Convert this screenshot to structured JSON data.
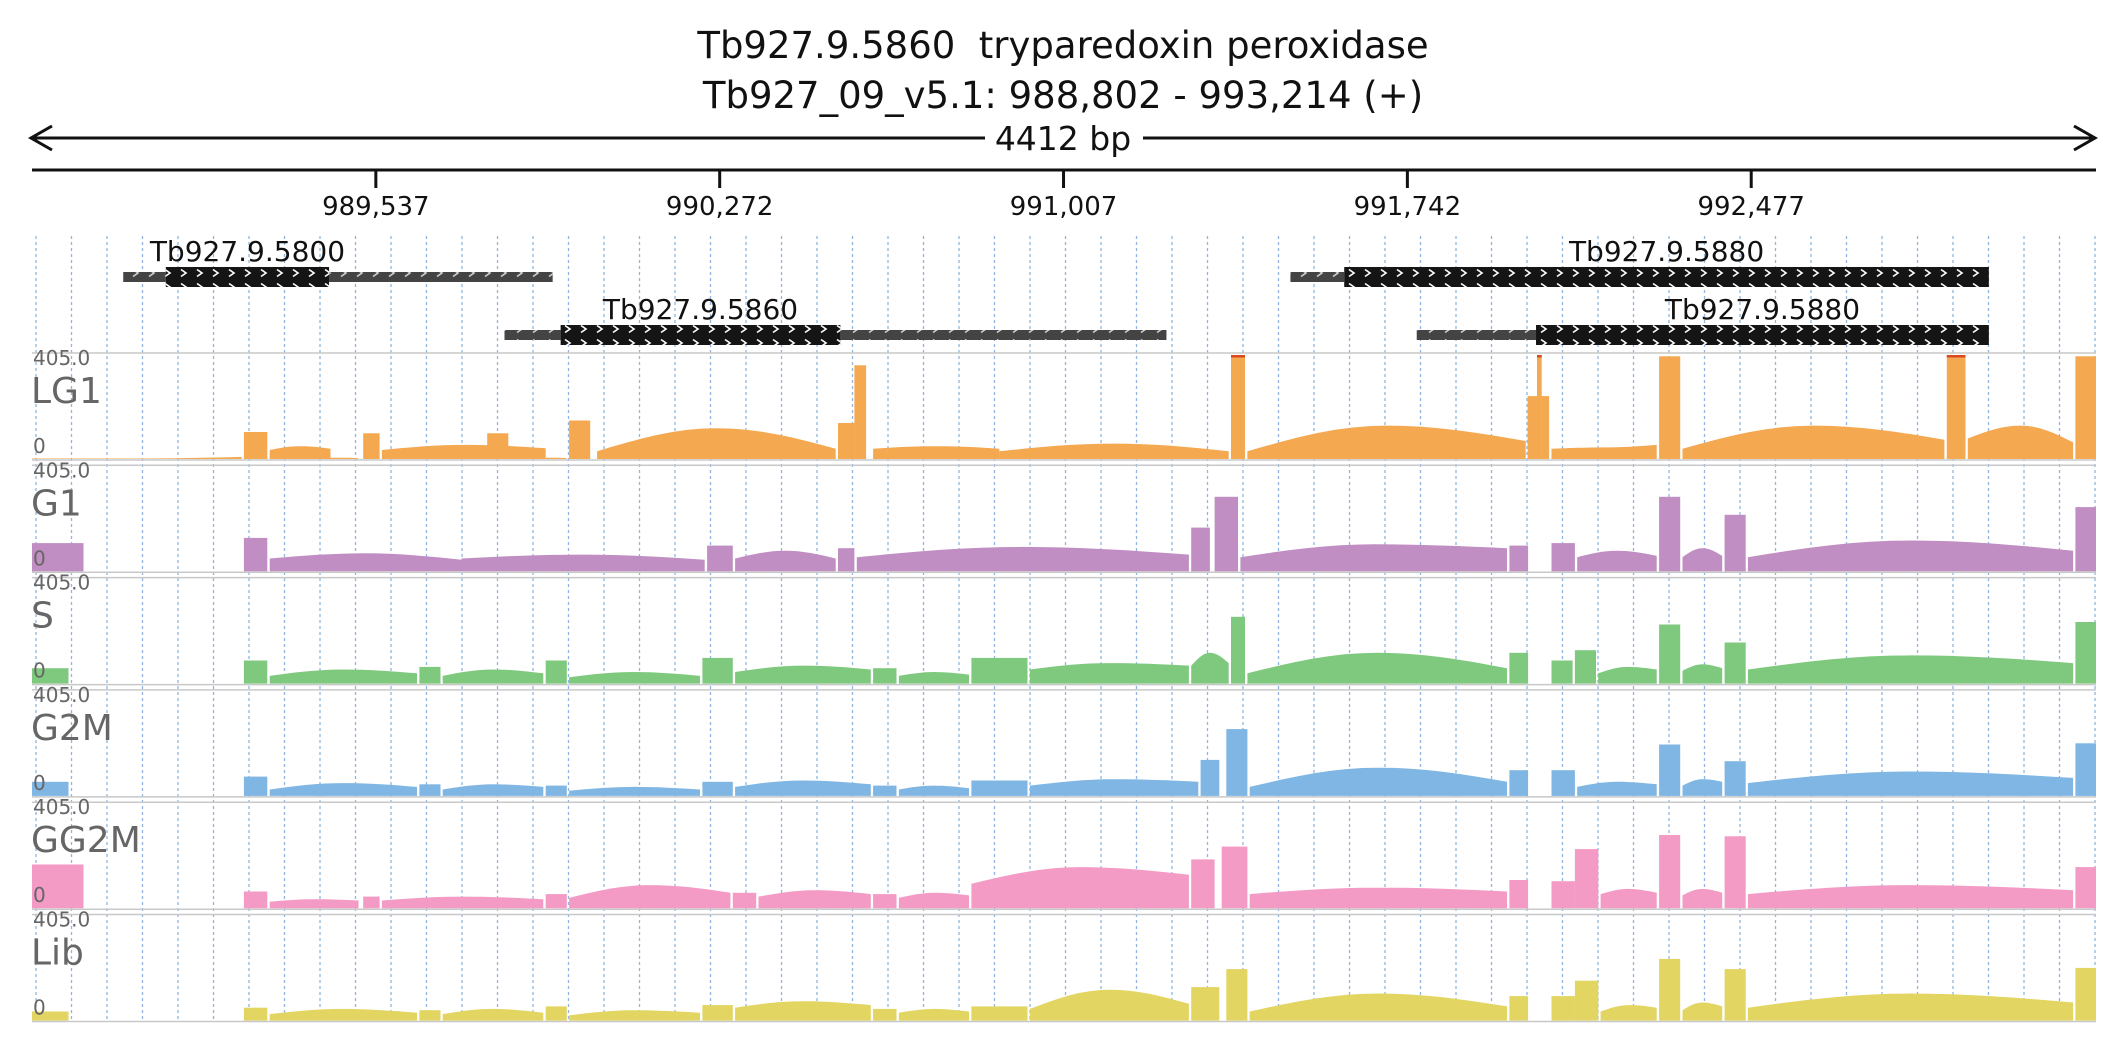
{
  "header": {
    "title": "Tb927.9.5860  tryparedoxin peroxidase",
    "region": "Tb927_09_v5.1: 988,802 - 993,214 (+)",
    "span_label": "4412 bp"
  },
  "chart_data": {
    "type": "area",
    "x_range": [
      988802,
      993214
    ],
    "ticks": [
      989537,
      990272,
      991007,
      991742,
      992477
    ],
    "tick_labels": [
      "989,537",
      "990,272",
      "991,007",
      "991,742",
      "992,477"
    ],
    "genes": [
      {
        "label": "Tb927.9.5800",
        "utr5": [
          988997,
          989088
        ],
        "cds": [
          989088,
          989437
        ],
        "utr3": [
          989437,
          989915
        ],
        "row": 0
      },
      {
        "label": "Tb927.9.5860",
        "utr5": [
          989812,
          989932
        ],
        "cds": [
          989932,
          990530
        ],
        "utr3": [
          990530,
          991227
        ],
        "row": 1
      },
      {
        "label": "Tb927.9.5880",
        "utr5": [
          991492,
          991607
        ],
        "cds": [
          991607,
          992985
        ],
        "utr3": null,
        "row": 0
      },
      {
        "label": "Tb927.9.5880",
        "utr5": [
          991762,
          992017
        ],
        "cds": [
          992017,
          992985
        ],
        "utr3": null,
        "row": 1
      }
    ],
    "y_max_label": "405.0",
    "y_min_label": "0",
    "y_range": [
      0,
      405
    ],
    "tracks": [
      {
        "name": "LG1",
        "color": "#f4a84f",
        "blocks": [
          [
            989255,
            989305,
            105
          ],
          [
            989510,
            989545,
            100
          ],
          [
            989775,
            989820,
            100
          ],
          [
            989950,
            989995,
            150
          ],
          [
            990525,
            990560,
            140
          ],
          [
            990560,
            990585,
            365
          ],
          [
            991365,
            991395,
            405
          ],
          [
            991999,
            992019,
            245
          ],
          [
            992019,
            992029,
            405
          ],
          [
            992029,
            992045,
            245
          ],
          [
            992280,
            992325,
            400
          ],
          [
            992895,
            992935,
            405
          ],
          [
            993170,
            993214,
            400
          ]
        ],
        "bumps": [
          [
            988802,
            989250,
            2,
            2,
            8
          ],
          [
            989310,
            989440,
            35,
            50,
            40
          ],
          [
            989440,
            989500,
            5,
            5,
            3
          ],
          [
            989550,
            989900,
            35,
            55,
            42
          ],
          [
            989900,
            989945,
            5,
            5,
            3
          ],
          [
            990010,
            990520,
            30,
            120,
            40
          ],
          [
            990600,
            990870,
            40,
            50,
            40
          ],
          [
            990870,
            991360,
            30,
            60,
            30
          ],
          [
            991400,
            991995,
            30,
            130,
            70
          ],
          [
            992050,
            992275,
            40,
            45,
            55
          ],
          [
            992330,
            992890,
            40,
            130,
            75
          ],
          [
            992940,
            993165,
            80,
            130,
            65
          ]
        ]
      },
      {
        "name": "G1",
        "color": "#c08ec2",
        "blocks": [
          [
            988802,
            988912,
            110
          ],
          [
            989255,
            989305,
            130
          ],
          [
            990245,
            990300,
            100
          ],
          [
            990525,
            990560,
            90
          ],
          [
            991280,
            991320,
            170
          ],
          [
            991330,
            991380,
            290
          ],
          [
            991960,
            992000,
            100
          ],
          [
            992050,
            992100,
            110
          ],
          [
            992280,
            992325,
            290
          ],
          [
            992420,
            992465,
            220
          ],
          [
            993170,
            993214,
            250
          ]
        ],
        "bumps": [
          [
            989310,
            989720,
            50,
            70,
            45
          ],
          [
            989720,
            990240,
            50,
            65,
            45
          ],
          [
            990305,
            990520,
            50,
            80,
            50
          ],
          [
            990565,
            991275,
            55,
            95,
            65
          ],
          [
            991385,
            991955,
            55,
            105,
            90
          ],
          [
            992105,
            992275,
            55,
            80,
            60
          ],
          [
            992330,
            992415,
            55,
            90,
            60
          ],
          [
            992470,
            993165,
            55,
            120,
            80
          ]
        ]
      },
      {
        "name": "S",
        "color": "#7fc97f",
        "blocks": [
          [
            988802,
            988880,
            60
          ],
          [
            989255,
            989305,
            90
          ],
          [
            989630,
            989675,
            65
          ],
          [
            989900,
            989945,
            90
          ],
          [
            990235,
            990300,
            100
          ],
          [
            990600,
            990650,
            60
          ],
          [
            990810,
            990930,
            100
          ],
          [
            991365,
            991395,
            260
          ],
          [
            991960,
            992000,
            120
          ],
          [
            992050,
            992095,
            90
          ],
          [
            992100,
            992145,
            130
          ],
          [
            992280,
            992325,
            230
          ],
          [
            992420,
            992465,
            160
          ],
          [
            993170,
            993214,
            240
          ]
        ],
        "bumps": [
          [
            989310,
            989625,
            30,
            55,
            40
          ],
          [
            989680,
            989895,
            30,
            55,
            40
          ],
          [
            989950,
            990230,
            25,
            45,
            30
          ],
          [
            990305,
            990595,
            45,
            70,
            55
          ],
          [
            990655,
            990805,
            30,
            45,
            35
          ],
          [
            990935,
            991275,
            55,
            80,
            70
          ],
          [
            991280,
            991360,
            70,
            120,
            80
          ],
          [
            991400,
            991955,
            40,
            120,
            60
          ],
          [
            992150,
            992275,
            40,
            65,
            55
          ],
          [
            992330,
            992415,
            50,
            75,
            60
          ],
          [
            992470,
            993165,
            55,
            110,
            80
          ]
        ]
      },
      {
        "name": "G2M",
        "color": "#7fb6e3",
        "blocks": [
          [
            988802,
            988880,
            55
          ],
          [
            989255,
            989305,
            75
          ],
          [
            989630,
            989675,
            45
          ],
          [
            989900,
            989945,
            40
          ],
          [
            990235,
            990300,
            55
          ],
          [
            990600,
            990650,
            40
          ],
          [
            990810,
            990930,
            60
          ],
          [
            991300,
            991340,
            140
          ],
          [
            991355,
            991400,
            260
          ],
          [
            991960,
            992000,
            100
          ],
          [
            992050,
            992100,
            100
          ],
          [
            992280,
            992325,
            200
          ],
          [
            992420,
            992465,
            135
          ],
          [
            993170,
            993214,
            205
          ]
        ],
        "bumps": [
          [
            989310,
            989625,
            25,
            50,
            35
          ],
          [
            989680,
            989895,
            25,
            45,
            35
          ],
          [
            989950,
            990230,
            20,
            35,
            25
          ],
          [
            990305,
            990595,
            35,
            60,
            45
          ],
          [
            990655,
            990805,
            25,
            40,
            30
          ],
          [
            990935,
            991295,
            40,
            65,
            55
          ],
          [
            991405,
            991955,
            35,
            110,
            55
          ],
          [
            992105,
            992275,
            35,
            55,
            45
          ],
          [
            992330,
            992415,
            40,
            65,
            55
          ],
          [
            992470,
            993165,
            50,
            95,
            70
          ]
        ]
      },
      {
        "name": "GG2M",
        "color": "#f39ac5",
        "blocks": [
          [
            988802,
            988912,
            170
          ],
          [
            989255,
            989305,
            65
          ],
          [
            989510,
            989545,
            45
          ],
          [
            989900,
            989945,
            55
          ],
          [
            990300,
            990350,
            60
          ],
          [
            990600,
            990650,
            55
          ],
          [
            991280,
            991330,
            190
          ],
          [
            991345,
            991400,
            240
          ],
          [
            991960,
            992000,
            110
          ],
          [
            992050,
            992100,
            105
          ],
          [
            992100,
            992150,
            230
          ],
          [
            992280,
            992325,
            285
          ],
          [
            992420,
            992465,
            280
          ],
          [
            993170,
            993214,
            160
          ]
        ],
        "bumps": [
          [
            989310,
            989500,
            25,
            35,
            30
          ],
          [
            989550,
            989895,
            30,
            45,
            35
          ],
          [
            989950,
            990295,
            40,
            90,
            60
          ],
          [
            990355,
            990595,
            45,
            70,
            55
          ],
          [
            990655,
            990805,
            40,
            60,
            50
          ],
          [
            990810,
            991275,
            95,
            160,
            130
          ],
          [
            991405,
            991955,
            55,
            80,
            65
          ],
          [
            992155,
            992275,
            55,
            75,
            60
          ],
          [
            992330,
            992415,
            50,
            75,
            60
          ],
          [
            992470,
            993165,
            55,
            90,
            70
          ]
        ]
      },
      {
        "name": "Lib",
        "color": "#e2d561",
        "blocks": [
          [
            988802,
            988880,
            35
          ],
          [
            989255,
            989305,
            50
          ],
          [
            989630,
            989675,
            40
          ],
          [
            989900,
            989945,
            55
          ],
          [
            990235,
            990300,
            60
          ],
          [
            990600,
            990650,
            45
          ],
          [
            990810,
            990930,
            55
          ],
          [
            991280,
            991340,
            130
          ],
          [
            991355,
            991400,
            200
          ],
          [
            991960,
            992000,
            95
          ],
          [
            992050,
            992100,
            95
          ],
          [
            992100,
            992150,
            155
          ],
          [
            992280,
            992325,
            240
          ],
          [
            992420,
            992465,
            200
          ],
          [
            993170,
            993214,
            205
          ]
        ],
        "bumps": [
          [
            989310,
            989625,
            25,
            45,
            30
          ],
          [
            989680,
            989895,
            25,
            45,
            30
          ],
          [
            989950,
            990230,
            20,
            40,
            30
          ],
          [
            990305,
            990595,
            50,
            75,
            60
          ],
          [
            990655,
            990805,
            30,
            45,
            35
          ],
          [
            990935,
            991275,
            45,
            120,
            65
          ],
          [
            991405,
            991955,
            35,
            105,
            55
          ],
          [
            992155,
            992275,
            35,
            60,
            50
          ],
          [
            992330,
            992415,
            40,
            70,
            55
          ],
          [
            992470,
            993165,
            50,
            105,
            70
          ]
        ]
      }
    ]
  }
}
